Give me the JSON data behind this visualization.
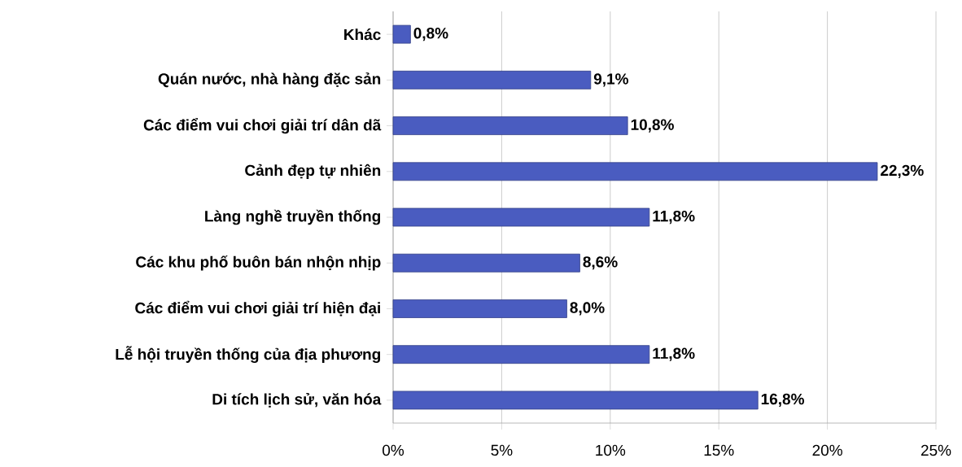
{
  "chart_data": {
    "type": "bar",
    "orientation": "horizontal",
    "categories": [
      "Khác",
      "Quán nước, nhà hàng đặc sản",
      "Các điểm vui chơi giải trí dân dã",
      "Cảnh đẹp tự nhiên",
      "Làng nghề truyền thống",
      "Các khu phố buôn bán nhộn nhịp",
      "Các điểm vui chơi giải trí hiện đại",
      "Lễ hội truyền thống của địa phương",
      "Di tích lịch sử, văn hóa"
    ],
    "values": [
      0.8,
      9.1,
      10.8,
      22.3,
      11.8,
      8.6,
      8.0,
      11.8,
      16.8
    ],
    "value_labels": [
      "0,8%",
      "9,1%",
      "10,8%",
      "22,3%",
      "11,8%",
      "8,6%",
      "8,0%",
      "11,8%",
      "16,8%"
    ],
    "color": "#4a5cc0",
    "xlim": [
      0,
      25
    ],
    "xticks": [
      {
        "value": 0,
        "label": "0%"
      },
      {
        "value": 5,
        "label": "5%"
      },
      {
        "value": 10,
        "label": "10%"
      },
      {
        "value": 15,
        "label": "15%"
      },
      {
        "value": 20,
        "label": "20%"
      },
      {
        "value": 25,
        "label": "25%"
      }
    ],
    "grid": "x"
  }
}
